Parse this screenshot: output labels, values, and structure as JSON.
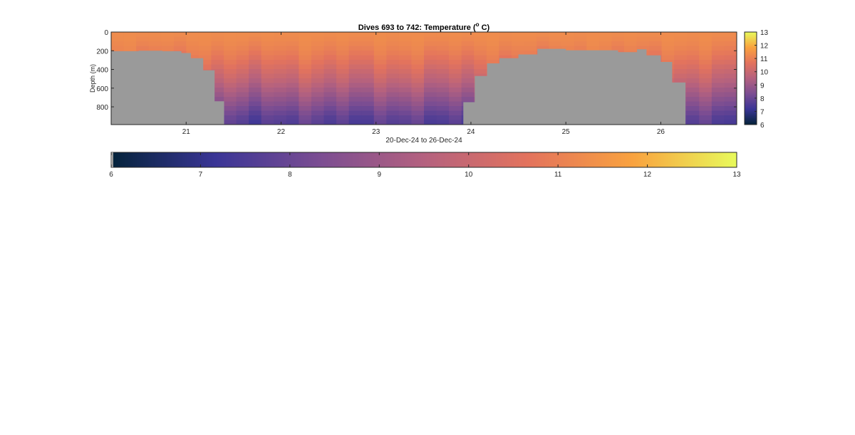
{
  "figure": {
    "title_prefix": "Dives 693 to 742: Temperature (",
    "title_sup": "o",
    "title_suffix": " C)",
    "xlabel": "20-Dec-24 to 26-Dec-24",
    "ylabel": "Depth (m)"
  },
  "chart_data": [
    {
      "type": "heatmap",
      "title": "Dives 693 to 742: Temperature (°C)",
      "xlabel": "20-Dec-24 to 26-Dec-24",
      "ylabel": "Depth (m)",
      "x_unit": "day of December 2024",
      "xlim": [
        20.21,
        26.8
      ],
      "ylim": [
        0,
        990
      ],
      "y_reversed": true,
      "xticks": [
        "21",
        "22",
        "23",
        "24",
        "25",
        "26"
      ],
      "yticks": [
        "0",
        "200",
        "400",
        "600",
        "800"
      ],
      "colormap": "thermal",
      "colormap_stops": [
        "#04233a",
        "#3a3596",
        "#7b4d92",
        "#b4617f",
        "#e3735d",
        "#f9a23f",
        "#e8fa5b"
      ],
      "clim": [
        6,
        13
      ],
      "no_data_color": "#9a9a9a",
      "temperature_profile": {
        "depth_m": [
          0,
          100,
          200,
          300,
          400,
          500,
          600,
          700,
          800,
          900,
          990
        ],
        "temp_c": [
          11.3,
          11.2,
          11.0,
          10.7,
          10.3,
          9.9,
          9.4,
          8.9,
          8.4,
          7.9,
          7.6
        ]
      },
      "data_bottom_depth_m": [
        {
          "x": 20.25,
          "depth": 205
        },
        {
          "x": 20.5,
          "depth": 200
        },
        {
          "x": 20.75,
          "depth": 205
        },
        {
          "x": 20.95,
          "depth": 225
        },
        {
          "x": 21.05,
          "depth": 280
        },
        {
          "x": 21.18,
          "depth": 410
        },
        {
          "x": 21.3,
          "depth": 740
        },
        {
          "x": 21.4,
          "depth": 990
        },
        {
          "x": 23.9,
          "depth": 990
        },
        {
          "x": 23.92,
          "depth": 750
        },
        {
          "x": 24.04,
          "depth": 470
        },
        {
          "x": 24.17,
          "depth": 335
        },
        {
          "x": 24.3,
          "depth": 280
        },
        {
          "x": 24.5,
          "depth": 240
        },
        {
          "x": 24.7,
          "depth": 180
        },
        {
          "x": 25.0,
          "depth": 195
        },
        {
          "x": 25.3,
          "depth": 195
        },
        {
          "x": 25.55,
          "depth": 215
        },
        {
          "x": 25.75,
          "depth": 185
        },
        {
          "x": 25.85,
          "depth": 250
        },
        {
          "x": 26.0,
          "depth": 320
        },
        {
          "x": 26.12,
          "depth": 540
        },
        {
          "x": 26.26,
          "depth": 990
        }
      ]
    },
    {
      "type": "colorbar",
      "orientation": "vertical",
      "ticks": [
        "6",
        "7",
        "8",
        "9",
        "10",
        "11",
        "12",
        "13"
      ],
      "range": [
        6,
        13
      ]
    },
    {
      "type": "colorbar",
      "orientation": "horizontal",
      "ticks": [
        "6",
        "7",
        "8",
        "9",
        "10",
        "11",
        "12",
        "13"
      ],
      "range": [
        6,
        13
      ]
    }
  ]
}
